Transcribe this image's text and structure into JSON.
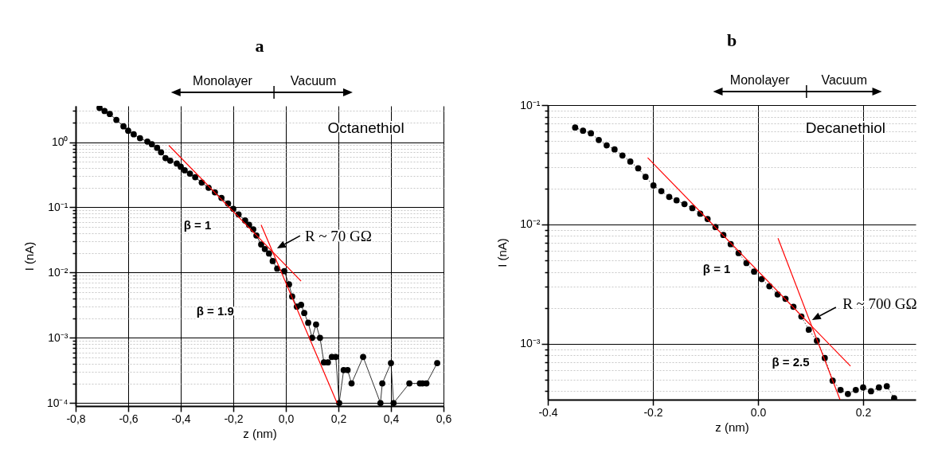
{
  "chart_data": [
    {
      "type": "line",
      "title": "a",
      "xlabel": "z (nm)",
      "ylabel": "I (nA)",
      "log": "y",
      "grid": true,
      "marker": "circle",
      "line_style": "solid",
      "xlim": [
        -0.8,
        0.6
      ],
      "xticks": [
        {
          "value": -0.8,
          "label": "-0,8"
        },
        {
          "value": -0.6,
          "label": "-0,6"
        },
        {
          "value": -0.4,
          "label": "-0,4"
        },
        {
          "value": -0.2,
          "label": "-0,2"
        },
        {
          "value": 0,
          "label": "0,0"
        },
        {
          "value": 0.2,
          "label": "0,2"
        },
        {
          "value": 0.4,
          "label": "0,4"
        },
        {
          "value": 0.6,
          "label": "0,6"
        }
      ],
      "ylim": [
        9e-05,
        3.6
      ],
      "yticks": [
        {
          "value": 0.0001,
          "label": "10⁻⁴"
        },
        {
          "value": 0.0002,
          "label": null
        },
        {
          "value": 0.0003,
          "label": null
        },
        {
          "value": 0.0004,
          "label": null
        },
        {
          "value": 0.0005,
          "label": null
        },
        {
          "value": 0.0006,
          "label": null
        },
        {
          "value": 0.0007,
          "label": null
        },
        {
          "value": 0.0008,
          "label": null
        },
        {
          "value": 0.0009,
          "label": null
        },
        {
          "value": 0.001,
          "label": "10⁻³"
        },
        {
          "value": 0.002,
          "label": null
        },
        {
          "value": 0.003,
          "label": null
        },
        {
          "value": 0.004,
          "label": null
        },
        {
          "value": 0.005,
          "label": null
        },
        {
          "value": 0.006,
          "label": null
        },
        {
          "value": 0.007,
          "label": null
        },
        {
          "value": 0.008,
          "label": null
        },
        {
          "value": 0.009,
          "label": null
        },
        {
          "value": 0.01,
          "label": "10⁻²"
        },
        {
          "value": 0.02,
          "label": null
        },
        {
          "value": 0.03,
          "label": null
        },
        {
          "value": 0.04,
          "label": null
        },
        {
          "value": 0.05,
          "label": null
        },
        {
          "value": 0.06,
          "label": null
        },
        {
          "value": 0.07,
          "label": null
        },
        {
          "value": 0.08,
          "label": null
        },
        {
          "value": 0.09,
          "label": null
        },
        {
          "value": 0.1,
          "label": "10⁻¹"
        },
        {
          "value": 0.2,
          "label": null
        },
        {
          "value": 0.3,
          "label": null
        },
        {
          "value": 0.4,
          "label": null
        },
        {
          "value": 0.5,
          "label": null
        },
        {
          "value": 0.6,
          "label": null
        },
        {
          "value": 0.7,
          "label": null
        },
        {
          "value": 0.8,
          "label": null
        },
        {
          "value": 0.9,
          "label": null
        },
        {
          "value": 1,
          "label": "10⁰"
        },
        {
          "value": 2,
          "label": null
        },
        {
          "value": 3,
          "label": null
        }
      ],
      "series": [
        {
          "color": "#000000",
          "x": [
            -0.709,
            -0.69,
            -0.67,
            -0.645,
            -0.618,
            -0.6,
            -0.579,
            -0.555,
            -0.527,
            -0.51,
            -0.49,
            -0.475,
            -0.458,
            -0.44,
            -0.415,
            -0.4,
            -0.385,
            -0.365,
            -0.345,
            -0.32,
            -0.294,
            -0.27,
            -0.245,
            -0.22,
            -0.2,
            -0.18,
            -0.155,
            -0.14,
            -0.124,
            -0.112,
            -0.094,
            -0.08,
            -0.064,
            -0.05,
            -0.033,
            -0.006,
            0.012,
            0.024,
            0.042,
            0.058,
            0.07,
            0.085,
            0.1,
            0.115,
            0.13,
            0.145,
            0.16,
            0.175,
            0.19,
            0.203,
            0.22,
            0.235,
            0.25,
            0.294,
            0.36,
            0.367,
            0.4,
            0.41,
            0.47,
            0.51,
            0.52,
            0.535,
            0.576
          ],
          "values": [
            3.35,
            3.0,
            2.7,
            2.2,
            1.75,
            1.5,
            1.32,
            1.15,
            1.02,
            0.93,
            0.82,
            0.7,
            0.57,
            0.52,
            0.47,
            0.42,
            0.37,
            0.33,
            0.29,
            0.24,
            0.2,
            0.17,
            0.14,
            0.115,
            0.095,
            0.078,
            0.063,
            0.054,
            0.046,
            0.037,
            0.027,
            0.023,
            0.0196,
            0.015,
            0.0115,
            0.0105,
            0.0066,
            0.0043,
            0.003,
            0.0032,
            0.0024,
            0.0017,
            0.001,
            0.0016,
            0.001,
            0.00042,
            0.00042,
            0.00051,
            0.00051,
            0.0001,
            0.00032,
            0.00032,
            0.0002,
            0.00051,
            0.0001,
            0.0002,
            0.00041,
            0.0001,
            0.0002,
            0.0002,
            0.0002,
            0.0002,
            0.00041
          ]
        },
        {
          "type": "line",
          "marker": "none",
          "color": "#ff0000",
          "x": [
            -0.445,
            0.058
          ],
          "values": [
            0.89,
            0.0074
          ]
        },
        {
          "type": "line",
          "marker": "none",
          "color": "#ff0000",
          "x": [
            -0.094,
            0.195
          ],
          "values": [
            0.054,
            0.0001
          ]
        }
      ],
      "annotations": [
        "Octanethiol",
        "Monolayer",
        "Vacuum",
        "β = 1",
        "β = 1.9",
        "R ~ 70 GΩ"
      ]
    },
    {
      "type": "line",
      "title": "b",
      "xlabel": "z (nm)",
      "ylabel": "I (nA)",
      "log": "y",
      "grid": true,
      "marker": "circle",
      "line_style": "solid",
      "xlim": [
        -0.4,
        0.3
      ],
      "xticks": [
        -0.4,
        -0.2,
        {
          "value": 0,
          "label": "0.0"
        },
        0.2
      ],
      "ylim": [
        0.00034,
        0.1
      ],
      "yticks": [
        {
          "value": 0.0004,
          "label": null
        },
        {
          "value": 0.0005,
          "label": null
        },
        {
          "value": 0.0006,
          "label": null
        },
        {
          "value": 0.0007,
          "label": null
        },
        {
          "value": 0.0008,
          "label": null
        },
        {
          "value": 0.0009,
          "label": null
        },
        {
          "value": 0.001,
          "label": "10⁻³"
        },
        {
          "value": 0.002,
          "label": null
        },
        {
          "value": 0.003,
          "label": null
        },
        {
          "value": 0.004,
          "label": null
        },
        {
          "value": 0.005,
          "label": null
        },
        {
          "value": 0.006,
          "label": null
        },
        {
          "value": 0.007,
          "label": null
        },
        {
          "value": 0.008,
          "label": null
        },
        {
          "value": 0.009,
          "label": null
        },
        {
          "value": 0.01,
          "label": "10⁻²"
        },
        {
          "value": 0.02,
          "label": null
        },
        {
          "value": 0.03,
          "label": null
        },
        {
          "value": 0.04,
          "label": null
        },
        {
          "value": 0.05,
          "label": null
        },
        {
          "value": 0.06,
          "label": null
        },
        {
          "value": 0.07,
          "label": null
        },
        {
          "value": 0.08,
          "label": null
        },
        {
          "value": 0.09,
          "label": null
        },
        {
          "value": 0.1,
          "label": "10⁻¹"
        }
      ],
      "series": [
        {
          "color": "#000000",
          "line_style": "dotted",
          "x": [
            -0.348,
            -0.333,
            -0.318,
            -0.303,
            -0.288,
            -0.273,
            -0.258,
            -0.243,
            -0.228,
            -0.214,
            -0.199,
            -0.184,
            -0.169,
            -0.155,
            -0.14,
            -0.125,
            -0.11,
            -0.096,
            -0.081,
            -0.066,
            -0.052,
            -0.037,
            -0.022,
            -0.0075,
            0.007,
            0.0216,
            0.0373,
            0.0523,
            0.0674,
            0.0825,
            0.0966,
            0.112,
            0.127,
            0.142,
            0.157,
            0.171,
            0.186,
            0.2,
            0.215,
            0.23,
            0.245,
            0.259
          ],
          "values": [
            0.0649,
            0.061,
            0.058,
            0.051,
            0.046,
            0.0425,
            0.0378,
            0.0336,
            0.0295,
            0.025,
            0.0212,
            0.019,
            0.017,
            0.0159,
            0.0148,
            0.0137,
            0.0123,
            0.0111,
            0.0095,
            0.00815,
            0.00683,
            0.00575,
            0.00474,
            0.00402,
            0.00348,
            0.00303,
            0.00259,
            0.00238,
            0.00204,
            0.00169,
            0.00131,
            0.00106,
            0.00076,
            0.00049,
            0.00041,
            0.00038,
            0.00041,
            0.00043,
            0.0004,
            0.00043,
            0.00044,
            0.00035
          ]
        },
        {
          "type": "line",
          "marker": "none",
          "color": "#ff0000",
          "x": [
            -0.21,
            0.176
          ],
          "values": [
            0.0362,
            0.00065
          ]
        },
        {
          "type": "line",
          "marker": "none",
          "color": "#ff0000",
          "x": [
            0.038,
            0.156
          ],
          "values": [
            0.00765,
            0.00034
          ]
        }
      ],
      "annotations": [
        "Decanethiol",
        "Monolayer",
        "Vacuum",
        "β = 1",
        "β = 2.5",
        "R ~ 700 GΩ"
      ]
    }
  ]
}
